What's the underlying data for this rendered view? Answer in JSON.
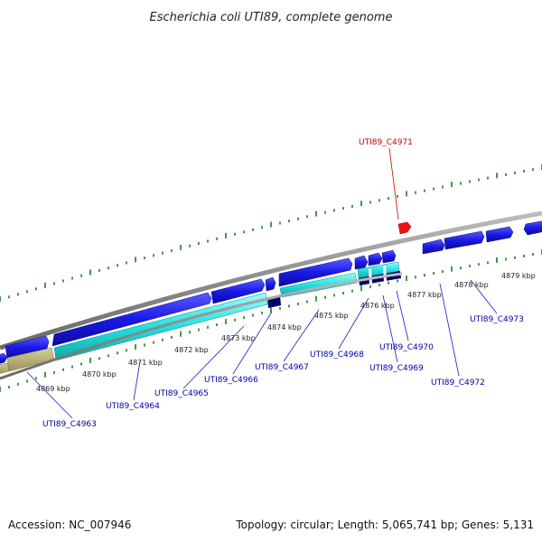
{
  "header": {
    "title": "Escherichia coli UTI89, complete genome"
  },
  "footer": {
    "accession": "Accession: NC_007946",
    "summary": "Topology: circular; Length: 5,065,741 bp; Genes: 5,131"
  },
  "colors": {
    "backbone": "#8c8c8c",
    "tick_dots": "#1f7a1f",
    "gene_forward": "#1a1ae6",
    "gene_cds_cyan": "#22e0e0",
    "gene_dark": "#000066",
    "pseudo_olive": "#b5aa6e",
    "label_blue": "#0000aa",
    "label_red": "#cc0000"
  },
  "scale_labels": [
    "4869 kbp",
    "4870 kbp",
    "4871 kbp",
    "4872 kbp",
    "4873 kbp",
    "4874 kbp",
    "4875 kbp",
    "4876 kbp",
    "4877 kbp",
    "4878 kbp",
    "4879 kbp"
  ],
  "gene_labels": [
    {
      "name": "UTI89_C4963",
      "highlight": false
    },
    {
      "name": "UTI89_C4964",
      "highlight": false
    },
    {
      "name": "UTI89_C4965",
      "highlight": false
    },
    {
      "name": "UTI89_C4966",
      "highlight": false
    },
    {
      "name": "UTI89_C4967",
      "highlight": false
    },
    {
      "name": "UTI89_C4968",
      "highlight": false
    },
    {
      "name": "UTI89_C4969",
      "highlight": false
    },
    {
      "name": "UTI89_C4970",
      "highlight": false
    },
    {
      "name": "UTI89_C4971",
      "highlight": true
    },
    {
      "name": "UTI89_C4972",
      "highlight": false
    },
    {
      "name": "UTI89_C4973",
      "highlight": false
    }
  ]
}
